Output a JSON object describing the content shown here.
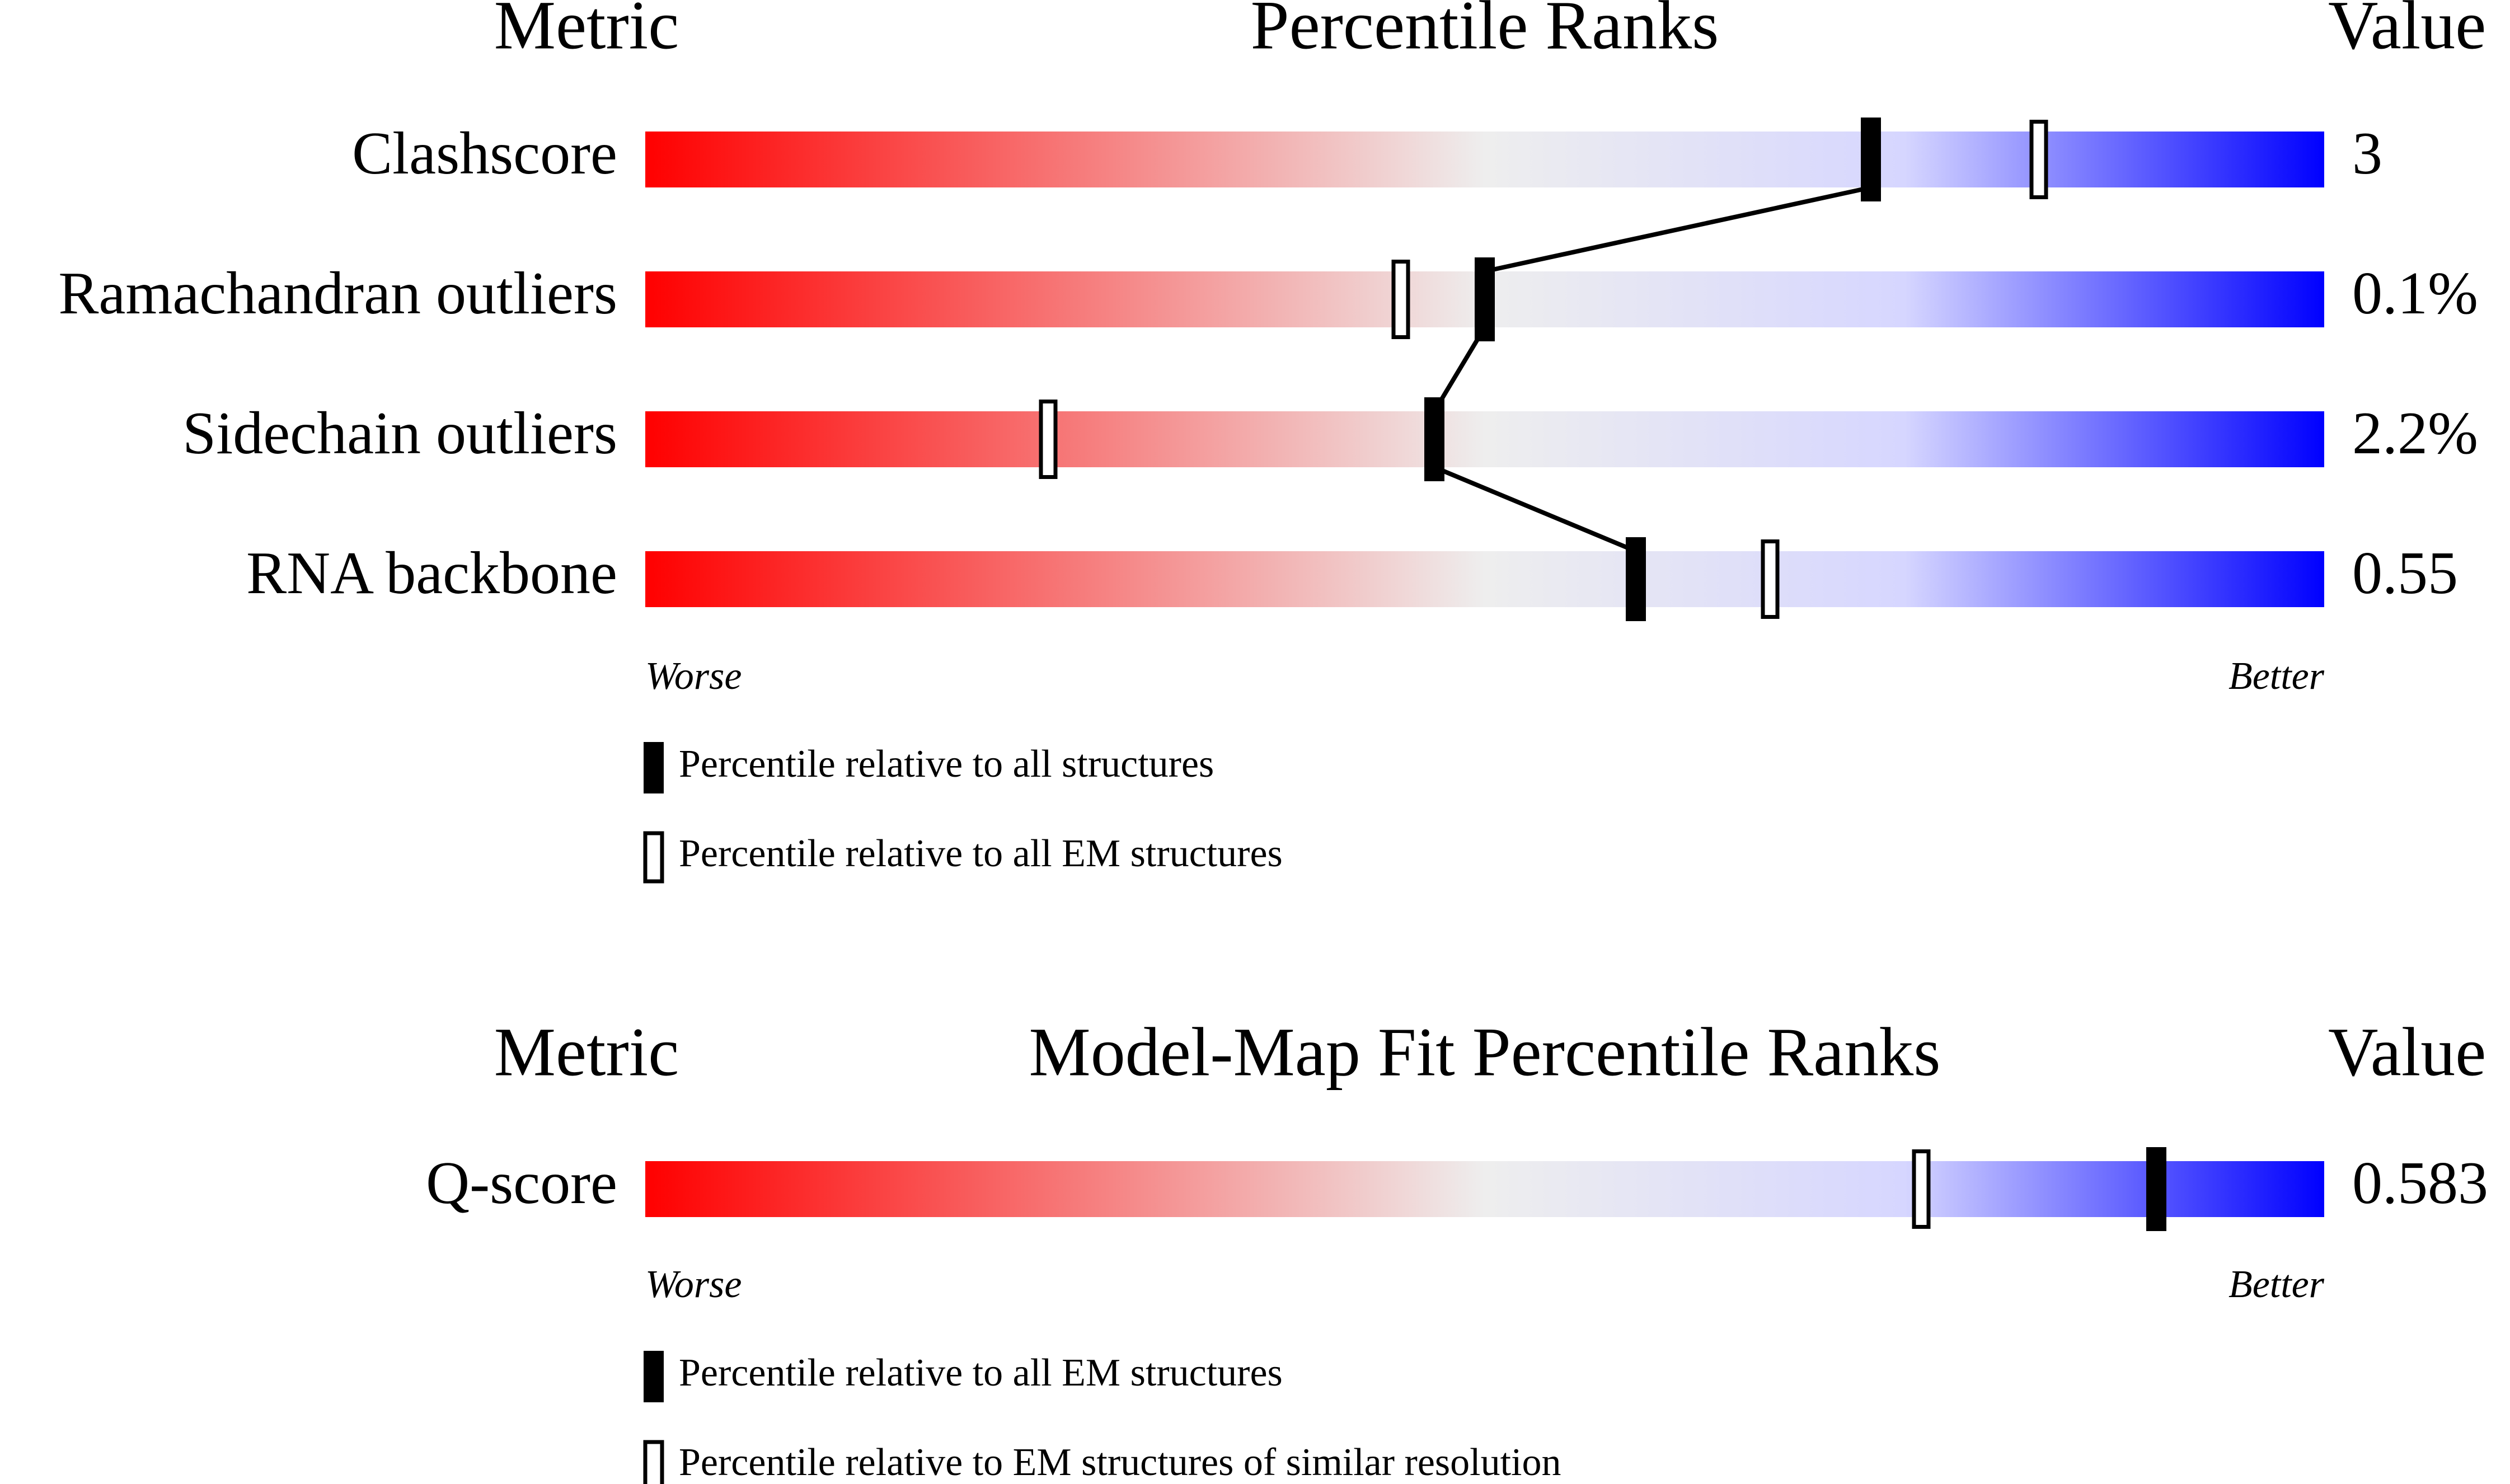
{
  "colors": {
    "worse": "#ff0000",
    "mid": "#eeeeee",
    "light_blue": "#d6d6ff",
    "better": "#0000ff",
    "marker": "#000000",
    "marker_hollow_fill": "#ffffff"
  },
  "chart_data": [
    {
      "type": "percentile-rank-slider",
      "header": {
        "metric": "Metric",
        "title": "Percentile Ranks",
        "value": "Value"
      },
      "scale": {
        "min": 0,
        "max": 100,
        "low_label": "Worse",
        "high_label": "Better"
      },
      "rows": [
        {
          "metric": "Clashscore",
          "value": "3",
          "percentile_all": 73,
          "percentile_em": 83
        },
        {
          "metric": "Ramachandran outliers",
          "value": "0.1%",
          "percentile_all": 50,
          "percentile_em": 45
        },
        {
          "metric": "Sidechain outliers",
          "value": "2.2%",
          "percentile_all": 47,
          "percentile_em": 24
        },
        {
          "metric": "RNA backbone",
          "value": "0.55",
          "percentile_all": 59,
          "percentile_em": 67
        }
      ],
      "legend": [
        {
          "marker": "filled",
          "label": "Percentile relative to all structures"
        },
        {
          "marker": "hollow",
          "label": "Percentile relative to all EM structures"
        }
      ],
      "connect_filled_markers": true
    },
    {
      "type": "percentile-rank-slider",
      "header": {
        "metric": "Metric",
        "title": "Model-Map Fit Percentile Ranks",
        "value": "Value"
      },
      "scale": {
        "min": 0,
        "max": 100,
        "low_label": "Worse",
        "high_label": "Better"
      },
      "rows": [
        {
          "metric": "Q-score",
          "value": "0.583",
          "percentile_all": 90,
          "percentile_em": 76
        }
      ],
      "legend": [
        {
          "marker": "filled",
          "label": "Percentile relative to all EM structures"
        },
        {
          "marker": "hollow",
          "label": "Percentile relative to EM structures of similar resolution"
        }
      ],
      "connect_filled_markers": false
    }
  ]
}
